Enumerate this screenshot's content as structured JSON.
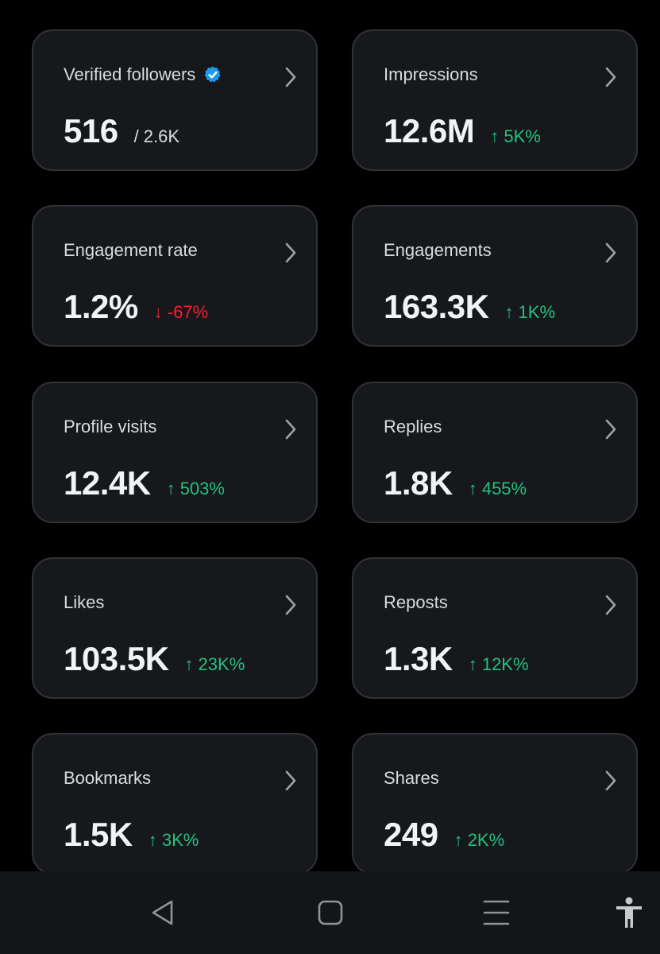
{
  "cards": [
    {
      "label": "Verified followers",
      "value": "516",
      "total": "/ 2.6K",
      "change": "",
      "direction": "",
      "verified": true
    },
    {
      "label": "Impressions",
      "value": "12.6M",
      "total": "",
      "change": "↑ 5K%",
      "direction": "up"
    },
    {
      "label": "Engagement rate",
      "value": "1.2%",
      "total": "",
      "change": "↓ -67%",
      "direction": "down"
    },
    {
      "label": "Engagements",
      "value": "163.3K",
      "total": "",
      "change": "↑ 1K%",
      "direction": "up"
    },
    {
      "label": "Profile visits",
      "value": "12.4K",
      "total": "",
      "change": "↑ 503%",
      "direction": "up"
    },
    {
      "label": "Replies",
      "value": "1.8K",
      "total": "",
      "change": "↑ 455%",
      "direction": "up"
    },
    {
      "label": "Likes",
      "value": "103.5K",
      "total": "",
      "change": "↑ 23K%",
      "direction": "up"
    },
    {
      "label": "Reposts",
      "value": "1.3K",
      "total": "",
      "change": "↑ 12K%",
      "direction": "up"
    },
    {
      "label": "Bookmarks",
      "value": "1.5K",
      "total": "",
      "change": "↑ 3K%",
      "direction": "up"
    },
    {
      "label": "Shares",
      "value": "249",
      "total": "",
      "change": "↑ 2K%",
      "direction": "up"
    }
  ],
  "icons": {
    "card_arrow": "chevron-right-icon",
    "verified": "verified-badge-icon",
    "nav_back": "back-triangle-icon",
    "nav_home": "home-square-icon",
    "nav_recents": "recents-lines-icon",
    "nav_accessibility": "accessibility-person-icon"
  },
  "colors": {
    "background": "#000000",
    "card": "#16181c",
    "card_border": "#2f3336",
    "positive": "#27c07d",
    "negative": "#f4212e",
    "verified": "#1d9bf0",
    "navbar": "#141519"
  }
}
